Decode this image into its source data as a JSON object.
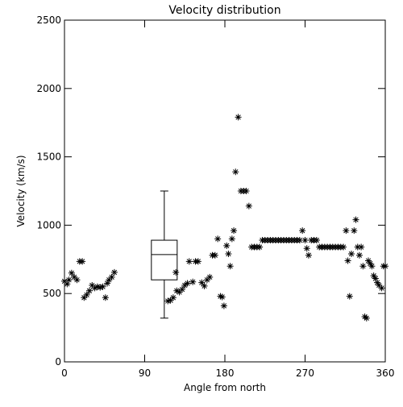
{
  "chart_data": {
    "type": "scatter",
    "title": "Velocity distribution",
    "xlabel": "Angle from north",
    "ylabel": "Velocity (km/s)",
    "xlim": [
      0,
      360
    ],
    "ylim": [
      0,
      2500
    ],
    "xticks": [
      0,
      90,
      180,
      270,
      360
    ],
    "xtick_labels": [
      "0",
      "90",
      "180",
      "270",
      "360"
    ],
    "yticks": [
      0,
      500,
      1000,
      1500,
      2000,
      2500
    ],
    "ytick_labels": [
      "0",
      "500",
      "1000",
      "1500",
      "2000",
      "2500"
    ],
    "grid": false,
    "marker": "asterisk",
    "boxplot": {
      "x": 112,
      "whisker_low": 320,
      "q1": 600,
      "median": 785,
      "q3": 890,
      "whisker_high": 1250
    },
    "points": [
      [
        0,
        590
      ],
      [
        3,
        570
      ],
      [
        5,
        600
      ],
      [
        8,
        650
      ],
      [
        11,
        620
      ],
      [
        14,
        600
      ],
      [
        17,
        735
      ],
      [
        20,
        735
      ],
      [
        22,
        470
      ],
      [
        25,
        490
      ],
      [
        28,
        520
      ],
      [
        31,
        560
      ],
      [
        34,
        540
      ],
      [
        37,
        550
      ],
      [
        40,
        545
      ],
      [
        43,
        550
      ],
      [
        46,
        470
      ],
      [
        48,
        575
      ],
      [
        50,
        600
      ],
      [
        53,
        620
      ],
      [
        56,
        655
      ],
      [
        116,
        445
      ],
      [
        119,
        450
      ],
      [
        122,
        470
      ],
      [
        125,
        655
      ],
      [
        126,
        520
      ],
      [
        129,
        510
      ],
      [
        132,
        530
      ],
      [
        135,
        560
      ],
      [
        138,
        575
      ],
      [
        140,
        735
      ],
      [
        144,
        585
      ],
      [
        147,
        735
      ],
      [
        150,
        735
      ],
      [
        154,
        580
      ],
      [
        157,
        555
      ],
      [
        160,
        600
      ],
      [
        163,
        620
      ],
      [
        166,
        780
      ],
      [
        169,
        780
      ],
      [
        172,
        900
      ],
      [
        175,
        480
      ],
      [
        177,
        475
      ],
      [
        179,
        410
      ],
      [
        182,
        850
      ],
      [
        184,
        790
      ],
      [
        186,
        700
      ],
      [
        188,
        900
      ],
      [
        190,
        960
      ],
      [
        192,
        1390
      ],
      [
        195,
        1790
      ],
      [
        198,
        1250
      ],
      [
        201,
        1250
      ],
      [
        204,
        1250
      ],
      [
        207,
        1140
      ],
      [
        210,
        840
      ],
      [
        213,
        840
      ],
      [
        216,
        840
      ],
      [
        219,
        840
      ],
      [
        222,
        890
      ],
      [
        225,
        890
      ],
      [
        228,
        890
      ],
      [
        231,
        890
      ],
      [
        234,
        890
      ],
      [
        237,
        890
      ],
      [
        240,
        890
      ],
      [
        243,
        890
      ],
      [
        246,
        890
      ],
      [
        249,
        890
      ],
      [
        252,
        890
      ],
      [
        255,
        890
      ],
      [
        258,
        890
      ],
      [
        261,
        890
      ],
      [
        264,
        890
      ],
      [
        267,
        960
      ],
      [
        270,
        890
      ],
      [
        272,
        830
      ],
      [
        274,
        780
      ],
      [
        277,
        890
      ],
      [
        280,
        890
      ],
      [
        283,
        890
      ],
      [
        286,
        840
      ],
      [
        289,
        840
      ],
      [
        292,
        840
      ],
      [
        295,
        840
      ],
      [
        298,
        840
      ],
      [
        301,
        840
      ],
      [
        304,
        840
      ],
      [
        307,
        840
      ],
      [
        310,
        840
      ],
      [
        313,
        840
      ],
      [
        316,
        960
      ],
      [
        318,
        740
      ],
      [
        320,
        480
      ],
      [
        322,
        790
      ],
      [
        325,
        960
      ],
      [
        327,
        1040
      ],
      [
        329,
        840
      ],
      [
        331,
        780
      ],
      [
        333,
        840
      ],
      [
        335,
        700
      ],
      [
        337,
        330
      ],
      [
        339,
        320
      ],
      [
        341,
        740
      ],
      [
        343,
        720
      ],
      [
        345,
        700
      ],
      [
        347,
        630
      ],
      [
        349,
        610
      ],
      [
        351,
        580
      ],
      [
        353,
        560
      ],
      [
        356,
        540
      ],
      [
        358,
        700
      ],
      [
        360,
        700
      ]
    ]
  }
}
